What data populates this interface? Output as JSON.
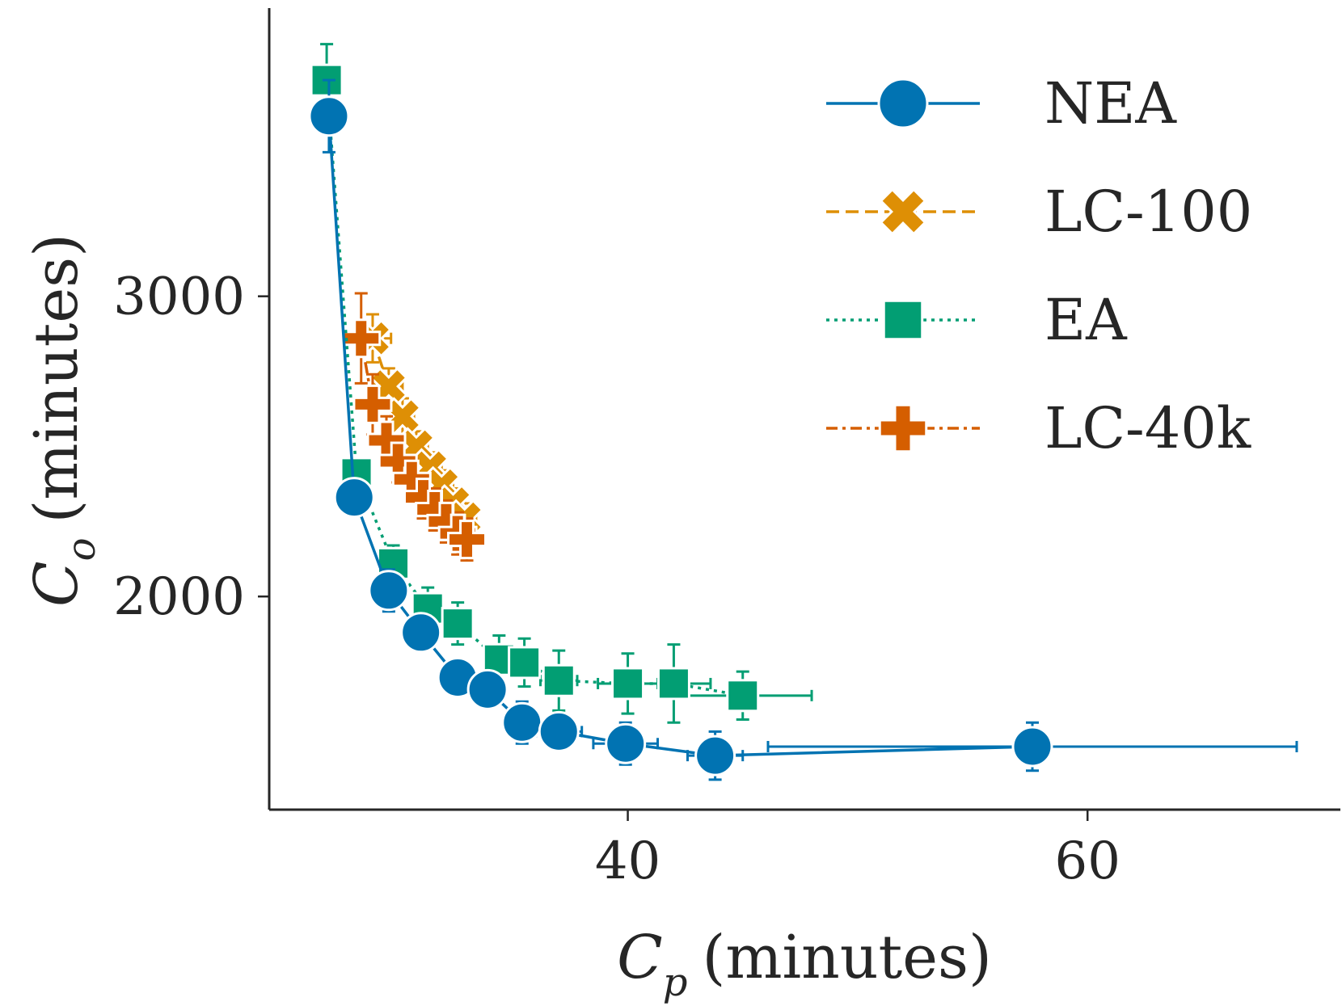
{
  "chart_data": {
    "type": "line",
    "title": "",
    "xlabel": {
      "symbol": "C",
      "sub": "p",
      "unit": "(minutes)"
    },
    "ylabel": {
      "symbol": "C",
      "sub": "o",
      "unit": "(minutes)"
    },
    "xlim": [
      24.4,
      71.0
    ],
    "ylim": [
      1290,
      3960
    ],
    "xticks": [
      40,
      60
    ],
    "yticks": [
      2000,
      3000
    ],
    "xtick_labels": [
      "40",
      "60"
    ],
    "ytick_labels": [
      "2000",
      "3000"
    ],
    "grid": false,
    "legend_position": "top-right",
    "series": [
      {
        "name": "NEA",
        "color": "#0173b2",
        "linestyle": "solid",
        "marker": "circle",
        "points": [
          {
            "x": 27.0,
            "y": 3600,
            "xerr": 0.2,
            "yerr": 120
          },
          {
            "x": 28.1,
            "y": 2330,
            "xerr": 0.2,
            "yerr": 30
          },
          {
            "x": 29.6,
            "y": 2020,
            "xerr": 0.2,
            "yerr": 70
          },
          {
            "x": 31.0,
            "y": 1880,
            "xerr": 0.3,
            "yerr": 40
          },
          {
            "x": 32.6,
            "y": 1730,
            "xerr": 0.3,
            "yerr": 40
          },
          {
            "x": 33.9,
            "y": 1690,
            "xerr": 0.3,
            "yerr": 50
          },
          {
            "x": 35.4,
            "y": 1580,
            "xerr": 0.3,
            "yerr": 70
          },
          {
            "x": 37.0,
            "y": 1550,
            "xerr": 1.0,
            "yerr": 60
          },
          {
            "x": 39.9,
            "y": 1510,
            "xerr": 1.4,
            "yerr": 70
          },
          {
            "x": 43.8,
            "y": 1470,
            "xerr": 1.2,
            "yerr": 80
          },
          {
            "x": 57.6,
            "y": 1500,
            "xerr": 11.5,
            "yerr": 80
          }
        ]
      },
      {
        "name": "LC-100",
        "color": "#de8f05",
        "linestyle": "dashed",
        "marker": "x",
        "points": [
          {
            "x": 28.9,
            "y": 2860,
            "xerr": 0.8,
            "yerr": 80
          },
          {
            "x": 29.6,
            "y": 2700,
            "xerr": 0.6,
            "yerr": 60
          },
          {
            "x": 30.2,
            "y": 2600,
            "xerr": 0.5,
            "yerr": 60
          },
          {
            "x": 30.8,
            "y": 2500,
            "xerr": 0.5,
            "yerr": 50
          },
          {
            "x": 31.4,
            "y": 2430,
            "xerr": 0.5,
            "yerr": 50
          },
          {
            "x": 31.9,
            "y": 2370,
            "xerr": 0.5,
            "yerr": 50
          },
          {
            "x": 32.4,
            "y": 2310,
            "xerr": 0.5,
            "yerr": 50
          },
          {
            "x": 32.9,
            "y": 2260,
            "xerr": 0.5,
            "yerr": 50
          }
        ]
      },
      {
        "name": "EA",
        "color": "#029e73",
        "linestyle": "dotted",
        "marker": "square",
        "points": [
          {
            "x": 26.9,
            "y": 3720,
            "xerr": 0.2,
            "yerr": 120
          },
          {
            "x": 28.2,
            "y": 2410,
            "xerr": 0.2,
            "yerr": 30
          },
          {
            "x": 29.8,
            "y": 2110,
            "xerr": 0.2,
            "yerr": 60
          },
          {
            "x": 31.3,
            "y": 1960,
            "xerr": 0.3,
            "yerr": 70
          },
          {
            "x": 32.6,
            "y": 1910,
            "xerr": 0.3,
            "yerr": 70
          },
          {
            "x": 34.4,
            "y": 1790,
            "xerr": 0.4,
            "yerr": 80
          },
          {
            "x": 35.5,
            "y": 1780,
            "xerr": 0.4,
            "yerr": 80
          },
          {
            "x": 37.0,
            "y": 1720,
            "xerr": 0.8,
            "yerr": 100
          },
          {
            "x": 40.0,
            "y": 1710,
            "xerr": 1.3,
            "yerr": 100
          },
          {
            "x": 42.0,
            "y": 1710,
            "xerr": 1.6,
            "yerr": 130
          },
          {
            "x": 45.0,
            "y": 1670,
            "xerr": 3.0,
            "yerr": 80
          }
        ]
      },
      {
        "name": "LC-40k",
        "color": "#d55e00",
        "linestyle": "dashdot",
        "marker": "plus",
        "points": [
          {
            "x": 28.4,
            "y": 2860,
            "xerr": 0.8,
            "yerr": 150
          },
          {
            "x": 28.9,
            "y": 2640,
            "xerr": 0.6,
            "yerr": 100
          },
          {
            "x": 29.5,
            "y": 2520,
            "xerr": 0.5,
            "yerr": 80
          },
          {
            "x": 30.0,
            "y": 2450,
            "xerr": 0.5,
            "yerr": 70
          },
          {
            "x": 30.6,
            "y": 2390,
            "xerr": 0.5,
            "yerr": 70
          },
          {
            "x": 31.1,
            "y": 2330,
            "xerr": 0.5,
            "yerr": 70
          },
          {
            "x": 31.6,
            "y": 2290,
            "xerr": 0.5,
            "yerr": 70
          },
          {
            "x": 32.1,
            "y": 2250,
            "xerr": 0.5,
            "yerr": 70
          },
          {
            "x": 32.6,
            "y": 2210,
            "xerr": 0.5,
            "yerr": 70
          },
          {
            "x": 33.0,
            "y": 2190,
            "xerr": 0.5,
            "yerr": 70
          }
        ]
      }
    ]
  }
}
